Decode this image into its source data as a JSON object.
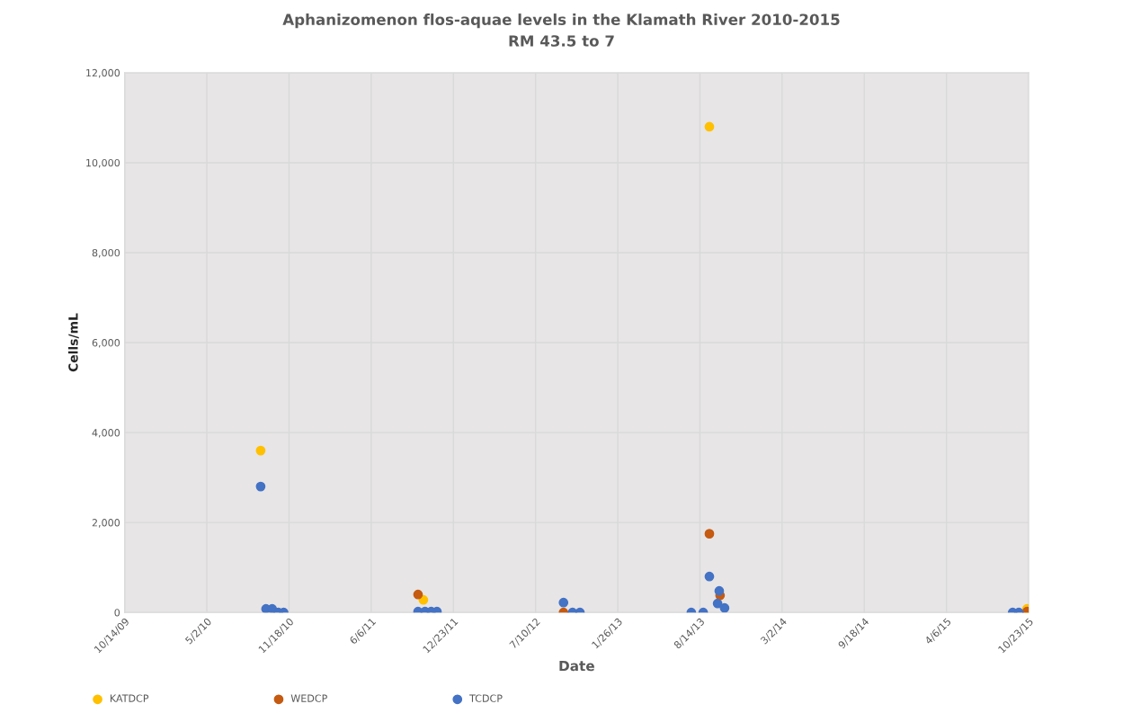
{
  "chart_data": {
    "type": "scatter",
    "title": "Aphanizomenon flos-aquae levels in the Klamath River 2010-2015",
    "subtitle": "RM 43.5 to 7",
    "xlabel": "Date",
    "ylabel": "Cells/mL",
    "series": [
      {
        "name": "KATDCP",
        "color": "#ffc000",
        "x": [
          "2010-09-10",
          "2011-10-11",
          "2011-10-15",
          "2013-09-06",
          "2013-10-09",
          "2015-10-19"
        ],
        "values": [
          3600,
          280,
          null,
          10800,
          null,
          80
        ]
      },
      {
        "name": "WEDCP",
        "color": "#c55a11",
        "x": [
          "2011-09-28",
          "2011-10-28",
          "2012-09-16",
          "2013-09-06",
          "2013-09-26",
          "2013-10-02",
          "2015-10-19"
        ],
        "values": [
          400,
          null,
          0,
          1750,
          null,
          380,
          20
        ]
      },
      {
        "name": "TCDCP",
        "color": "#4472c4",
        "x": [
          "2010-09-10",
          "2010-09-23",
          "2010-10-08",
          "2010-10-23",
          "2010-11-05",
          "2011-09-28",
          "2011-10-15",
          "2011-10-30",
          "2011-11-13",
          "2012-09-16",
          "2012-10-08",
          "2012-10-26",
          "2013-07-24",
          "2013-08-22",
          "2013-09-06",
          "2013-09-26",
          "2013-09-30",
          "2013-10-13",
          "2015-09-14",
          "2015-09-29"
        ],
        "values": [
          2800,
          80,
          80,
          0,
          0,
          20,
          20,
          20,
          20,
          220,
          0,
          0,
          0,
          0,
          800,
          200,
          480,
          100,
          0,
          0
        ]
      }
    ],
    "xlim": [
      "2009-10-14",
      "2015-10-23"
    ],
    "xticks": [
      {
        "value": "2009-10-14",
        "label": "10/14/09"
      },
      {
        "value": "2010-05-02",
        "label": "5/2/10"
      },
      {
        "value": "2010-11-18",
        "label": "11/18/10"
      },
      {
        "value": "2011-06-06",
        "label": "6/6/11"
      },
      {
        "value": "2011-12-23",
        "label": "12/23/11"
      },
      {
        "value": "2012-07-10",
        "label": "7/10/12"
      },
      {
        "value": "2013-01-26",
        "label": "1/26/13"
      },
      {
        "value": "2013-08-14",
        "label": "8/14/13"
      },
      {
        "value": "2014-03-02",
        "label": "3/2/14"
      },
      {
        "value": "2014-09-18",
        "label": "9/18/14"
      },
      {
        "value": "2015-04-06",
        "label": "4/6/15"
      },
      {
        "value": "2015-10-23",
        "label": "10/23/15"
      }
    ],
    "ylim": [
      0,
      12000
    ],
    "yticks": [
      {
        "value": 0,
        "label": "0"
      },
      {
        "value": 2000,
        "label": "2,000"
      },
      {
        "value": 4000,
        "label": "4,000"
      },
      {
        "value": 6000,
        "label": "6,000"
      },
      {
        "value": 8000,
        "label": "8,000"
      },
      {
        "value": 10000,
        "label": "10,000"
      },
      {
        "value": 12000,
        "label": "12,000"
      }
    ],
    "grid": true,
    "legend": "bottom left",
    "marker": "circle"
  }
}
